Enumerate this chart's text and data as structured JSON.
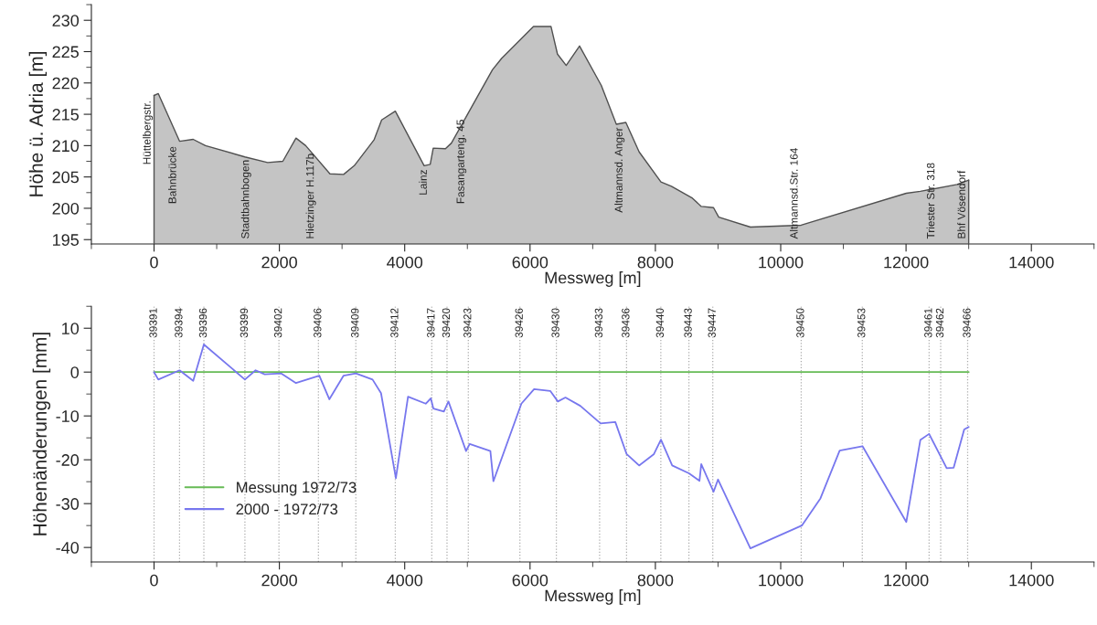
{
  "chart_data": [
    {
      "type": "area",
      "xlabel": "Messweg [m]",
      "ylabel": "Höhe ü. Adria [m]",
      "xlim": [
        -1000,
        15000
      ],
      "xticks": [
        0,
        2000,
        4000,
        6000,
        8000,
        10000,
        12000,
        14000
      ],
      "ylim": [
        194.3,
        232.5
      ],
      "yticks": [
        195,
        200,
        205,
        210,
        215,
        220,
        225,
        230
      ],
      "series": [
        {
          "color": "#c4c4c4",
          "x": [
            0,
            68,
            407,
            625,
            820,
            1450,
            1813,
            2055,
            2265,
            2420,
            2807,
            3025,
            3195,
            3510,
            3632,
            3850,
            4310,
            4407,
            4455,
            4650,
            4745,
            5400,
            5545,
            6055,
            6335,
            6438,
            6577,
            6790,
            7137,
            7377,
            7529,
            7741,
            8089,
            8256,
            8592,
            8732,
            8928,
            9011,
            9516,
            10326,
            12004,
            12228,
            12814,
            13000
          ],
          "values": [
            218.0,
            218.3,
            210.7,
            211.0,
            210.0,
            208.2,
            207.3,
            207.5,
            211.2,
            210.0,
            205.5,
            205.4,
            206.8,
            210.9,
            214.1,
            215.5,
            206.8,
            207.0,
            209.6,
            209.5,
            210.4,
            222.1,
            223.9,
            229.0,
            229.0,
            224.6,
            222.8,
            225.9,
            219.6,
            213.4,
            213.7,
            209.0,
            204.2,
            203.5,
            201.6,
            200.3,
            200.1,
            198.6,
            197.0,
            197.3,
            202.4,
            202.7,
            203.8,
            204.5
          ]
        }
      ],
      "annotations": [
        {
          "text": "Hüttelbergstr.",
          "x": 0,
          "y": 218.0
        },
        {
          "text": "Bahnbrücke",
          "x": 407,
          "y": 210.7
        },
        {
          "text": "Stadtbahnbogen",
          "x": 1570,
          "y": 207.9
        },
        {
          "text": "Hietzinger H.117b",
          "x": 2604,
          "y": 207.9
        },
        {
          "text": "Lainz",
          "x": 4407,
          "y": 207.0
        },
        {
          "text": "Fasangarteng. 45",
          "x": 5004,
          "y": 215.0
        },
        {
          "text": "Altmannsd. Anger",
          "x": 7529,
          "y": 213.7
        },
        {
          "text": "Altmannsd.Str. 164",
          "x": 10326,
          "y": 197.3
        },
        {
          "text": "Triester Str. 318",
          "x": 12509,
          "y": 203.2
        },
        {
          "text": "Bhf Vösendorf",
          "x": 13000,
          "y": 204.5
        }
      ]
    },
    {
      "type": "line",
      "xlabel": "Messweg [m]",
      "ylabel": "Höhenänderungen [mm]",
      "xlim": [
        -1000,
        15000
      ],
      "xticks": [
        0,
        2000,
        4000,
        6000,
        8000,
        10000,
        12000,
        14000
      ],
      "ylim": [
        -43.3,
        15
      ],
      "yticks": [
        -40,
        -30,
        -20,
        -10,
        0,
        10
      ],
      "legend": "bottom left",
      "series": [
        {
          "name": "Messung 1972/73",
          "color": "#66bb55",
          "x": [
            0,
            13000
          ],
          "values": [
            0,
            0
          ]
        },
        {
          "name": "2000 - 1972/73",
          "color": "#7777ee",
          "x": [
            0,
            68,
            407,
            625,
            795,
            1450,
            1620,
            1765,
            2030,
            2265,
            2637,
            2797,
            3025,
            3220,
            3487,
            3622,
            3859,
            4053,
            4335,
            4417,
            4457,
            4625,
            4698,
            4979,
            5037,
            5367,
            5415,
            5862,
            6065,
            6322,
            6444,
            6565,
            6801,
            7126,
            7361,
            7541,
            7741,
            7977,
            8089,
            8268,
            8536,
            8704,
            8732,
            8928,
            9000,
            9516,
            10337,
            10634,
            10941,
            11305,
            12004,
            12228,
            12368,
            12648,
            12760,
            12928,
            13000
          ],
          "values": [
            0,
            -1.7,
            0.4,
            -2.0,
            6.3,
            -1.7,
            0.4,
            -0.5,
            -0.3,
            -2.5,
            -0.8,
            -6.2,
            -0.8,
            -0.3,
            -1.7,
            -4.8,
            -24.2,
            -5.6,
            -7.2,
            -6.0,
            -8.3,
            -9.0,
            -6.7,
            -18.0,
            -16.4,
            -18.0,
            -24.9,
            -7.2,
            -3.9,
            -4.3,
            -6.7,
            -5.8,
            -7.7,
            -11.7,
            -11.4,
            -18.7,
            -21.3,
            -18.7,
            -15.4,
            -21.3,
            -23.1,
            -24.8,
            -21.0,
            -27.3,
            -24.5,
            -40.2,
            -35.0,
            -28.8,
            -17.9,
            -16.9,
            -34.2,
            -15.5,
            -14.1,
            -21.9,
            -21.8,
            -13.1,
            -12.5
          ]
        }
      ],
      "ref_lines": [
        {
          "axis": "x",
          "value": 0,
          "color": "#aaaaaa",
          "line_style": "dotted"
        },
        {
          "axis": "x",
          "value": 407,
          "color": "#aaaaaa",
          "line_style": "dotted"
        },
        {
          "axis": "x",
          "value": 795,
          "color": "#aaaaaa",
          "line_style": "dotted"
        },
        {
          "axis": "x",
          "value": 1450,
          "color": "#aaaaaa",
          "line_style": "dotted"
        },
        {
          "axis": "x",
          "value": 1993,
          "color": "#aaaaaa",
          "line_style": "dotted"
        },
        {
          "axis": "x",
          "value": 2623,
          "color": "#aaaaaa",
          "line_style": "dotted"
        },
        {
          "axis": "x",
          "value": 3220,
          "color": "#aaaaaa",
          "line_style": "dotted"
        },
        {
          "axis": "x",
          "value": 3850,
          "color": "#aaaaaa",
          "line_style": "dotted"
        },
        {
          "axis": "x",
          "value": 4432,
          "color": "#aaaaaa",
          "line_style": "dotted"
        },
        {
          "axis": "x",
          "value": 4675,
          "color": "#aaaaaa",
          "line_style": "dotted"
        },
        {
          "axis": "x",
          "value": 5015,
          "color": "#aaaaaa",
          "line_style": "dotted"
        },
        {
          "axis": "x",
          "value": 5838,
          "color": "#aaaaaa",
          "line_style": "dotted"
        },
        {
          "axis": "x",
          "value": 6420,
          "color": "#aaaaaa",
          "line_style": "dotted"
        },
        {
          "axis": "x",
          "value": 7110,
          "color": "#aaaaaa",
          "line_style": "dotted"
        },
        {
          "axis": "x",
          "value": 7540,
          "color": "#aaaaaa",
          "line_style": "dotted"
        },
        {
          "axis": "x",
          "value": 8087,
          "color": "#aaaaaa",
          "line_style": "dotted"
        },
        {
          "axis": "x",
          "value": 8535,
          "color": "#aaaaaa",
          "line_style": "dotted"
        },
        {
          "axis": "x",
          "value": 8916,
          "color": "#aaaaaa",
          "line_style": "dotted"
        },
        {
          "axis": "x",
          "value": 10327,
          "color": "#aaaaaa",
          "line_style": "dotted"
        },
        {
          "axis": "x",
          "value": 11302,
          "color": "#aaaaaa",
          "line_style": "dotted"
        },
        {
          "axis": "x",
          "value": 12368,
          "color": "#aaaaaa",
          "line_style": "dotted"
        },
        {
          "axis": "x",
          "value": 12553,
          "color": "#aaaaaa",
          "line_style": "dotted"
        },
        {
          "axis": "x",
          "value": 12983,
          "color": "#aaaaaa",
          "line_style": "dotted"
        }
      ],
      "annotations": [
        {
          "text": "39391",
          "x": 0,
          "y": 7.8
        },
        {
          "text": "39394",
          "x": 407,
          "y": 7.8
        },
        {
          "text": "39396",
          "x": 795,
          "y": 7.8
        },
        {
          "text": "39399",
          "x": 1450,
          "y": 7.8
        },
        {
          "text": "39402",
          "x": 1993,
          "y": 7.8
        },
        {
          "text": "39406",
          "x": 2623,
          "y": 7.8
        },
        {
          "text": "39409",
          "x": 3220,
          "y": 7.8
        },
        {
          "text": "39412",
          "x": 3850,
          "y": 7.8
        },
        {
          "text": "39417",
          "x": 4432,
          "y": 7.8
        },
        {
          "text": "39420",
          "x": 4675,
          "y": 7.8
        },
        {
          "text": "39423",
          "x": 5015,
          "y": 7.8
        },
        {
          "text": "39426",
          "x": 5838,
          "y": 7.8
        },
        {
          "text": "39430",
          "x": 6420,
          "y": 7.8
        },
        {
          "text": "39433",
          "x": 7110,
          "y": 7.8
        },
        {
          "text": "39436",
          "x": 7540,
          "y": 7.8
        },
        {
          "text": "39440",
          "x": 8087,
          "y": 7.8
        },
        {
          "text": "39443",
          "x": 8535,
          "y": 7.8
        },
        {
          "text": "39447",
          "x": 8916,
          "y": 7.8
        },
        {
          "text": "39450",
          "x": 10327,
          "y": 7.8
        },
        {
          "text": "39453",
          "x": 11302,
          "y": 7.8
        },
        {
          "text": "39461",
          "x": 12368,
          "y": 7.8
        },
        {
          "text": "39462",
          "x": 12553,
          "y": 7.8
        },
        {
          "text": "39466",
          "x": 12983,
          "y": 7.8
        }
      ]
    }
  ]
}
